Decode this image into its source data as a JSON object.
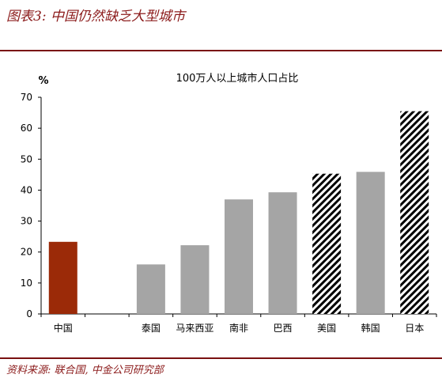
{
  "figure": {
    "title": "图表3:  中国仍然缺乏大型城市",
    "source": "资料来源:  联合国,  中金公司研究部"
  },
  "chart_data": {
    "type": "bar",
    "title": "100万人以上城市人口占比",
    "ylabel": "%",
    "xlabel": "",
    "ylim": [
      0,
      70
    ],
    "yticks": [
      0,
      10,
      20,
      30,
      40,
      50,
      60,
      70
    ],
    "grid": false,
    "categories": [
      "中国",
      "",
      "泰国",
      "马来西亚",
      "南非",
      "巴西",
      "美国",
      "韩国",
      "日本"
    ],
    "values": [
      23.3,
      null,
      16.0,
      22.2,
      37.0,
      39.3,
      45.3,
      45.9,
      65.5
    ],
    "styles": [
      "solid-red",
      "",
      "solid-gray",
      "solid-gray",
      "solid-gray",
      "solid-gray",
      "hatched",
      "solid-gray",
      "hatched"
    ],
    "colors": {
      "red": "#9b2a08",
      "gray": "#a5a5a5",
      "hatch": "#000000"
    }
  }
}
